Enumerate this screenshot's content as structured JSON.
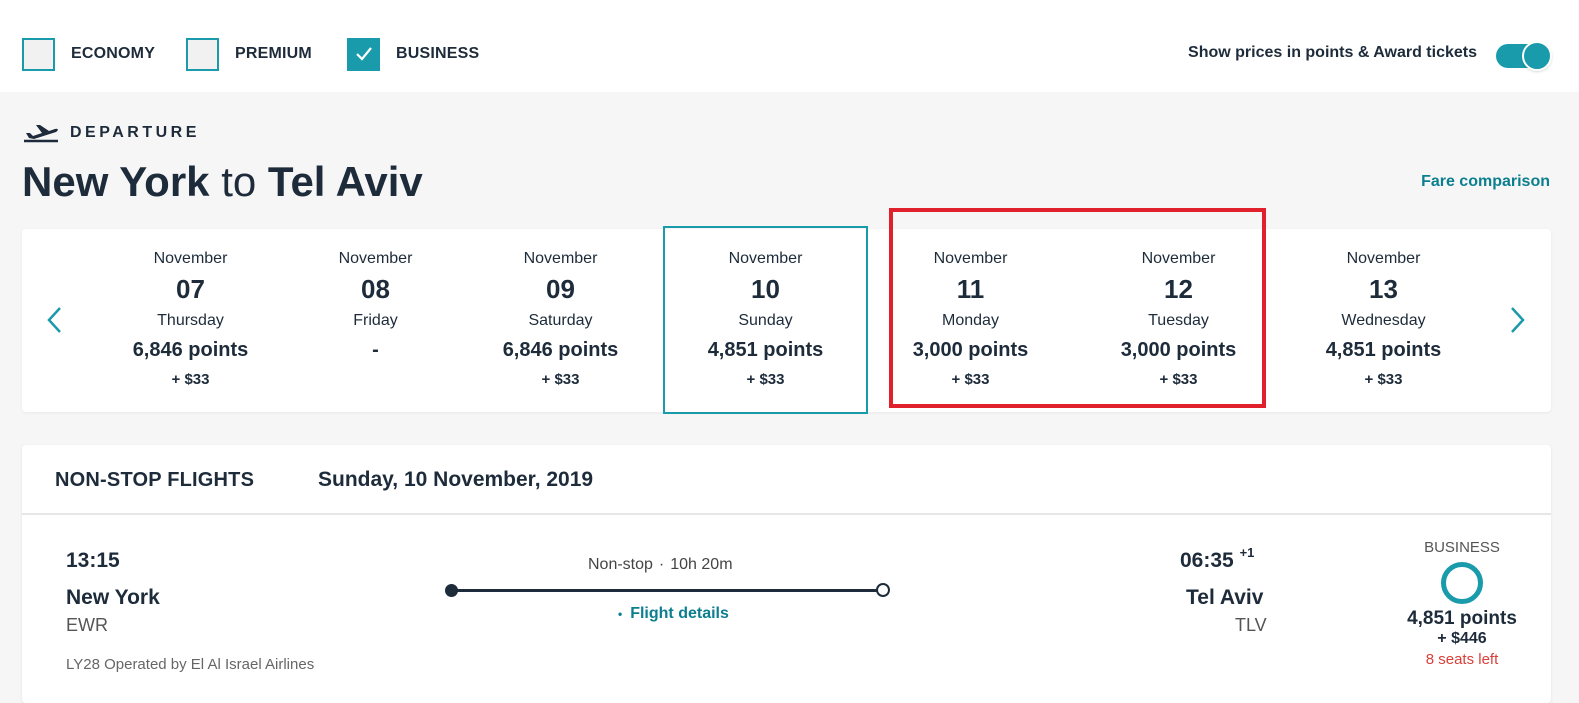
{
  "cabins": [
    {
      "label": "ECONOMY",
      "checked": false
    },
    {
      "label": "PREMIUM",
      "checked": false
    },
    {
      "label": "BUSINESS",
      "checked": true
    }
  ],
  "points_toggle": {
    "label": "Show prices in points & Award tickets",
    "on": true
  },
  "departure": {
    "label": "DEPARTURE",
    "origin": "New York",
    "connector": "to",
    "destination": "Tel Aviv",
    "fare_comparison": "Fare comparison"
  },
  "dates": [
    {
      "month": "November",
      "day": "07",
      "weekday": "Thursday",
      "points": "6,846 points",
      "cash": "+ $33"
    },
    {
      "month": "November",
      "day": "08",
      "weekday": "Friday",
      "points": "-",
      "cash": ""
    },
    {
      "month": "November",
      "day": "09",
      "weekday": "Saturday",
      "points": "6,846 points",
      "cash": "+ $33"
    },
    {
      "month": "November",
      "day": "10",
      "weekday": "Sunday",
      "points": "4,851 points",
      "cash": "+ $33"
    },
    {
      "month": "November",
      "day": "11",
      "weekday": "Monday",
      "points": "3,000 points",
      "cash": "+ $33"
    },
    {
      "month": "November",
      "day": "12",
      "weekday": "Tuesday",
      "points": "3,000 points",
      "cash": "+ $33"
    },
    {
      "month": "November",
      "day": "13",
      "weekday": "Wednesday",
      "points": "4,851 points",
      "cash": "+ $33"
    }
  ],
  "results": {
    "title": "NON-STOP FLIGHTS",
    "date": "Sunday, 10 November, 2019",
    "flight": {
      "dep_time": "13:15",
      "dep_city": "New York",
      "dep_code": "EWR",
      "operated": "LY28 Operated by El Al Israel Airlines",
      "stops": "Non-stop",
      "duration": "10h 20m",
      "details": "Flight details",
      "arr_time": "06:35",
      "arr_offset": "+1",
      "arr_city": "Tel Aviv",
      "arr_code": "TLV",
      "fare_class": "BUSINESS",
      "fare_points": "4,851 points",
      "fare_cash": "+ $446",
      "seats_left": "8 seats left"
    }
  },
  "colors": {
    "accent": "#1a9bab",
    "link": "#0c7f8f",
    "highlight": "#e0202a",
    "warning": "#d9403a"
  }
}
